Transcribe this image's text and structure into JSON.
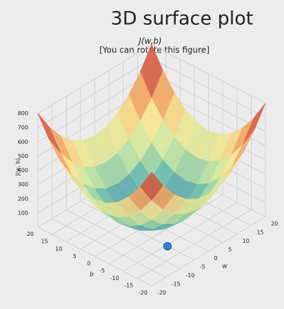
{
  "chart_data": {
    "type": "surface",
    "title": "3D surface plot",
    "subtitle": "J(w,b)",
    "note": "[You can rotate this figure]",
    "xlabel": "w",
    "ylabel": "b",
    "zlabel": "J(w, b)",
    "x": [
      -20,
      -16,
      -12,
      -8,
      -4,
      0,
      4,
      8,
      12,
      16,
      20
    ],
    "y": [
      -20,
      -16,
      -12,
      -8,
      -4,
      0,
      4,
      8,
      12,
      16,
      20
    ],
    "z": [
      [
        800,
        656,
        544,
        464,
        416,
        400,
        416,
        464,
        544,
        656,
        800
      ],
      [
        656,
        512,
        400,
        320,
        272,
        256,
        272,
        320,
        400,
        512,
        656
      ],
      [
        544,
        400,
        288,
        208,
        160,
        144,
        160,
        208,
        288,
        400,
        544
      ],
      [
        464,
        320,
        208,
        128,
        80,
        64,
        80,
        128,
        208,
        320,
        464
      ],
      [
        416,
        272,
        160,
        80,
        32,
        16,
        32,
        80,
        160,
        272,
        416
      ],
      [
        400,
        256,
        144,
        64,
        16,
        0,
        16,
        64,
        144,
        256,
        400
      ],
      [
        416,
        272,
        160,
        80,
        32,
        16,
        32,
        80,
        160,
        272,
        416
      ],
      [
        464,
        320,
        208,
        128,
        80,
        64,
        80,
        128,
        208,
        320,
        464
      ],
      [
        544,
        400,
        288,
        208,
        160,
        144,
        160,
        208,
        288,
        400,
        544
      ],
      [
        656,
        512,
        400,
        320,
        272,
        256,
        272,
        320,
        400,
        512,
        656
      ],
      [
        800,
        656,
        544,
        464,
        416,
        400,
        416,
        464,
        544,
        656,
        800
      ]
    ],
    "xlim": [
      -20,
      20
    ],
    "ylim": [
      -20,
      20
    ],
    "zlim": [
      0,
      800
    ],
    "xticks": [
      -20,
      -15,
      -10,
      -5,
      0,
      5,
      10,
      15,
      20
    ],
    "yticks": [
      -20,
      -15,
      -10,
      -5,
      0,
      5,
      10,
      15,
      20
    ],
    "zticks": [
      100,
      200,
      300,
      400,
      500,
      600,
      700,
      800
    ],
    "colormap": [
      "#3a62ad",
      "#5fb6a8",
      "#c9e89c",
      "#f6e58f",
      "#f3a15c",
      "#d2543e",
      "#8e1a3c"
    ],
    "grid": true
  }
}
